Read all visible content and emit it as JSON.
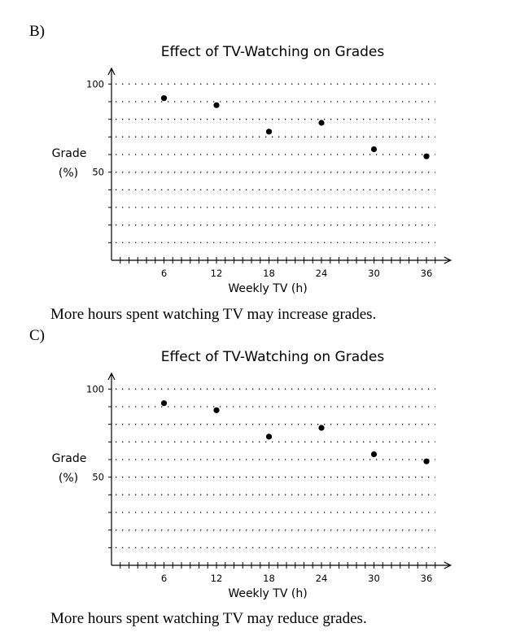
{
  "options": [
    {
      "label": "B)",
      "caption": "More hours spent watching TV may increase grades."
    },
    {
      "label": "C)",
      "caption": "More hours spent watching TV may reduce grades."
    }
  ],
  "chart_data": [
    {
      "type": "scatter",
      "title": "Effect of TV-Watching on Grades",
      "xlabel": "Weekly TV (h)",
      "ylabel": [
        "Grade",
        "(%)"
      ],
      "x": [
        6,
        12,
        18,
        24,
        30,
        36
      ],
      "y": [
        92,
        88,
        73,
        78,
        63,
        59
      ],
      "xticks": [
        "6",
        "12",
        "18",
        "24",
        "30",
        "36"
      ],
      "yticks": [
        "50",
        "100"
      ],
      "xlim": [
        0,
        37
      ],
      "ylim": [
        10,
        100
      ],
      "grid": "dotted"
    },
    {
      "type": "scatter",
      "title": "Effect of TV-Watching on Grades",
      "xlabel": "Weekly TV (h)",
      "ylabel": [
        "Grade",
        "(%)"
      ],
      "x": [
        6,
        12,
        18,
        24,
        30,
        36
      ],
      "y": [
        92,
        88,
        73,
        78,
        63,
        59
      ],
      "xticks": [
        "6",
        "12",
        "18",
        "24",
        "30",
        "36"
      ],
      "yticks": [
        "50",
        "100"
      ],
      "xlim": [
        0,
        37
      ],
      "ylim": [
        10,
        100
      ],
      "grid": "dotted"
    }
  ]
}
